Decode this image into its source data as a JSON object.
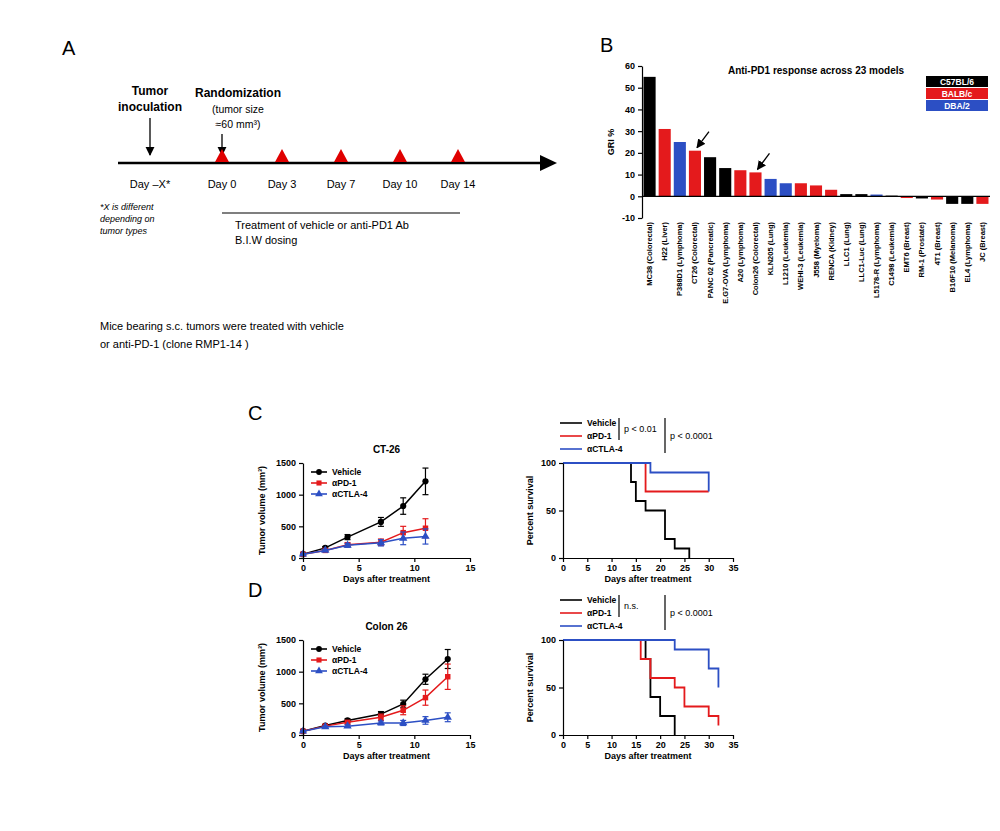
{
  "diagram": {
    "panel": "A",
    "inoculation": [
      "Tumor",
      "inoculation"
    ],
    "randomization": "Randomization",
    "randomization_note": [
      "(tumor size",
      "≈60 mm³)"
    ],
    "days": [
      "Day –X*",
      "Day 0",
      "Day 3",
      "Day 7",
      "Day 10",
      "Day 14"
    ],
    "footnote": [
      "*X is different",
      "depending on",
      "tumor types"
    ],
    "treatment": "Treatment of vehicle or anti-PD1 Ab",
    "dosing": "B.I.W dosing",
    "caption": [
      "Mice bearing s.c. tumors were treated with vehicle",
      "or anti-PD-1 (clone RMP1-14 )"
    ]
  },
  "chart_data": [
    {
      "panel": "B",
      "type": "bar",
      "title": "Anti-PD1 response across 23 models",
      "y_label": "GRI %",
      "categories": [
        "MC38 (Colorectal)",
        "H22 (Liver)",
        "P388D1 (Lymphoma)",
        "CT26 (Colorectal)",
        "PANC 02 (Pancreatic)",
        "E.G7-OVA (Lymphoma)",
        "A20 (Lymphoma)",
        "Colon26 (Colorectal)",
        "KLN205 (Lung)",
        "L1210 (Leukemia)",
        "WEHI-3 (Leukemia)",
        "J558 (Myeloma)",
        "RENCA (Kidney)",
        "LLC1 (Lung)",
        "LLC1-Luc (Lung)",
        "L5178-R (Lymphoma)",
        "C1498 (Leukemia)",
        "EMT6 (Breast)",
        "RM-1 (Prostate)",
        "4T1 (Breast)",
        "B16F10 (Melanoma)",
        "EL4 (Lymphoma)",
        "JC (Breast)"
      ],
      "series": [
        {
          "name": "C57BL/6",
          "color": "#000000",
          "values": [
            55,
            null,
            null,
            null,
            18,
            13,
            null,
            null,
            null,
            null,
            null,
            null,
            null,
            1,
            1,
            null,
            0.3,
            null,
            -1,
            null,
            -3.5,
            -3.5,
            null
          ]
        },
        {
          "name": "BALB/c",
          "color": "#e41a1c",
          "values": [
            null,
            31,
            null,
            21,
            null,
            null,
            12,
            11,
            null,
            null,
            6,
            5,
            3,
            null,
            null,
            null,
            null,
            -0.8,
            null,
            -1.5,
            null,
            null,
            -3.5
          ]
        },
        {
          "name": "DBA/2",
          "color": "#2c4fc4",
          "values": [
            null,
            null,
            25,
            null,
            null,
            null,
            null,
            null,
            8,
            6,
            null,
            null,
            null,
            null,
            null,
            0.8,
            null,
            null,
            null,
            null,
            null,
            null,
            null
          ]
        }
      ],
      "ylim": [
        -10,
        60
      ],
      "yticks": [
        -10,
        0,
        10,
        20,
        30,
        40,
        50,
        60
      ],
      "legend": "upper right",
      "arrows": [
        "CT26 (Colorectal)",
        "Colon26 (Colorectal)"
      ]
    },
    {
      "panel": "C",
      "type": "line",
      "title": "CT-26",
      "x_label": "Days after treatment",
      "y_label": "Tumor volume (mm³)",
      "x": [
        0,
        2,
        4,
        7,
        9,
        11
      ],
      "series": [
        {
          "name": "Vehicle",
          "color": "#000000",
          "marker": "circle",
          "values": [
            60,
            160,
            330,
            570,
            820,
            1210
          ],
          "errors": [
            5,
            20,
            40,
            70,
            130,
            210
          ]
        },
        {
          "name": "αPD-1",
          "color": "#e41a1c",
          "marker": "square",
          "values": [
            60,
            120,
            210,
            250,
            400,
            470
          ],
          "errors": [
            5,
            15,
            30,
            50,
            100,
            150
          ]
        },
        {
          "name": "αCTLA-4",
          "color": "#2c4fc4",
          "marker": "triangle",
          "values": [
            60,
            120,
            200,
            240,
            310,
            340
          ],
          "errors": [
            5,
            15,
            30,
            50,
            100,
            120
          ]
        }
      ],
      "xlim": [
        0,
        15
      ],
      "xticks": [
        0,
        5,
        10,
        15
      ],
      "ylim": [
        0,
        1500
      ],
      "yticks": [
        0,
        500,
        1000,
        1500
      ],
      "legend": "upper left"
    },
    {
      "type": "step",
      "x_label": "Days after treatment",
      "y_label": "Percent survival",
      "series": [
        {
          "name": "Vehicle",
          "color": "#000000",
          "x": [
            0,
            14,
            15,
            17,
            21,
            23,
            26
          ],
          "values": [
            100,
            80,
            60,
            50,
            20,
            10,
            0
          ]
        },
        {
          "name": "αPD-1",
          "color": "#e41a1c",
          "x": [
            0,
            17,
            30
          ],
          "values": [
            100,
            70,
            70
          ]
        },
        {
          "name": "αCTLA-4",
          "color": "#2c4fc4",
          "x": [
            0,
            18,
            30
          ],
          "values": [
            100,
            90,
            70
          ]
        }
      ],
      "xlim": [
        0,
        35
      ],
      "xticks": [
        0,
        5,
        10,
        15,
        20,
        25,
        30,
        35
      ],
      "ylim": [
        0,
        100
      ],
      "yticks": [
        0,
        50,
        100
      ],
      "legend": "top",
      "annotations": [
        {
          "text": "p < 0.01",
          "between": [
            "Vehicle",
            "αPD-1"
          ]
        },
        {
          "text": "p < 0.0001",
          "between": [
            "Vehicle",
            "αCTLA-4"
          ]
        }
      ]
    },
    {
      "panel": "D",
      "type": "line",
      "title": "Colon 26",
      "x_label": "Days after treatment",
      "y_label": "Tumor volume (mm³)",
      "x": [
        0,
        2,
        4,
        7,
        9,
        11,
        13
      ],
      "series": [
        {
          "name": "Vehicle",
          "color": "#000000",
          "marker": "circle",
          "values": [
            60,
            150,
            230,
            330,
            490,
            880,
            1200
          ],
          "errors": [
            5,
            15,
            25,
            40,
            60,
            80,
            150
          ]
        },
        {
          "name": "αPD-1",
          "color": "#e41a1c",
          "marker": "square",
          "values": [
            60,
            140,
            200,
            280,
            390,
            590,
            920
          ],
          "errors": [
            5,
            15,
            25,
            50,
            70,
            120,
            200
          ]
        },
        {
          "name": "αCTLA-4",
          "color": "#2c4fc4",
          "marker": "triangle",
          "values": [
            60,
            130,
            140,
            190,
            190,
            230,
            280
          ],
          "errors": [
            5,
            10,
            20,
            30,
            40,
            60,
            70
          ]
        }
      ],
      "xlim": [
        0,
        15
      ],
      "xticks": [
        0,
        5,
        10,
        15
      ],
      "ylim": [
        0,
        1500
      ],
      "yticks": [
        0,
        500,
        1000,
        1500
      ],
      "legend": "upper left"
    },
    {
      "type": "step",
      "x_label": "Days after treatment",
      "y_label": "Percent survival",
      "series": [
        {
          "name": "Vehicle",
          "color": "#000000",
          "x": [
            0,
            17,
            18,
            20,
            23
          ],
          "values": [
            100,
            80,
            40,
            20,
            0
          ]
        },
        {
          "name": "αPD-1",
          "color": "#e41a1c",
          "x": [
            0,
            16,
            18,
            23,
            25,
            30,
            32
          ],
          "values": [
            100,
            80,
            60,
            50,
            30,
            20,
            10
          ]
        },
        {
          "name": "αCTLA-4",
          "color": "#2c4fc4",
          "x": [
            0,
            23,
            30,
            32
          ],
          "values": [
            100,
            90,
            70,
            50
          ]
        }
      ],
      "xlim": [
        0,
        35
      ],
      "xticks": [
        0,
        5,
        10,
        15,
        20,
        25,
        30,
        35
      ],
      "ylim": [
        0,
        100
      ],
      "yticks": [
        0,
        50,
        100
      ],
      "legend": "top",
      "annotations": [
        {
          "text": "n.s.",
          "between": [
            "Vehicle",
            "αPD-1"
          ]
        },
        {
          "text": "p < 0.0001",
          "between": [
            "Vehicle",
            "αCTLA-4"
          ]
        }
      ]
    }
  ]
}
